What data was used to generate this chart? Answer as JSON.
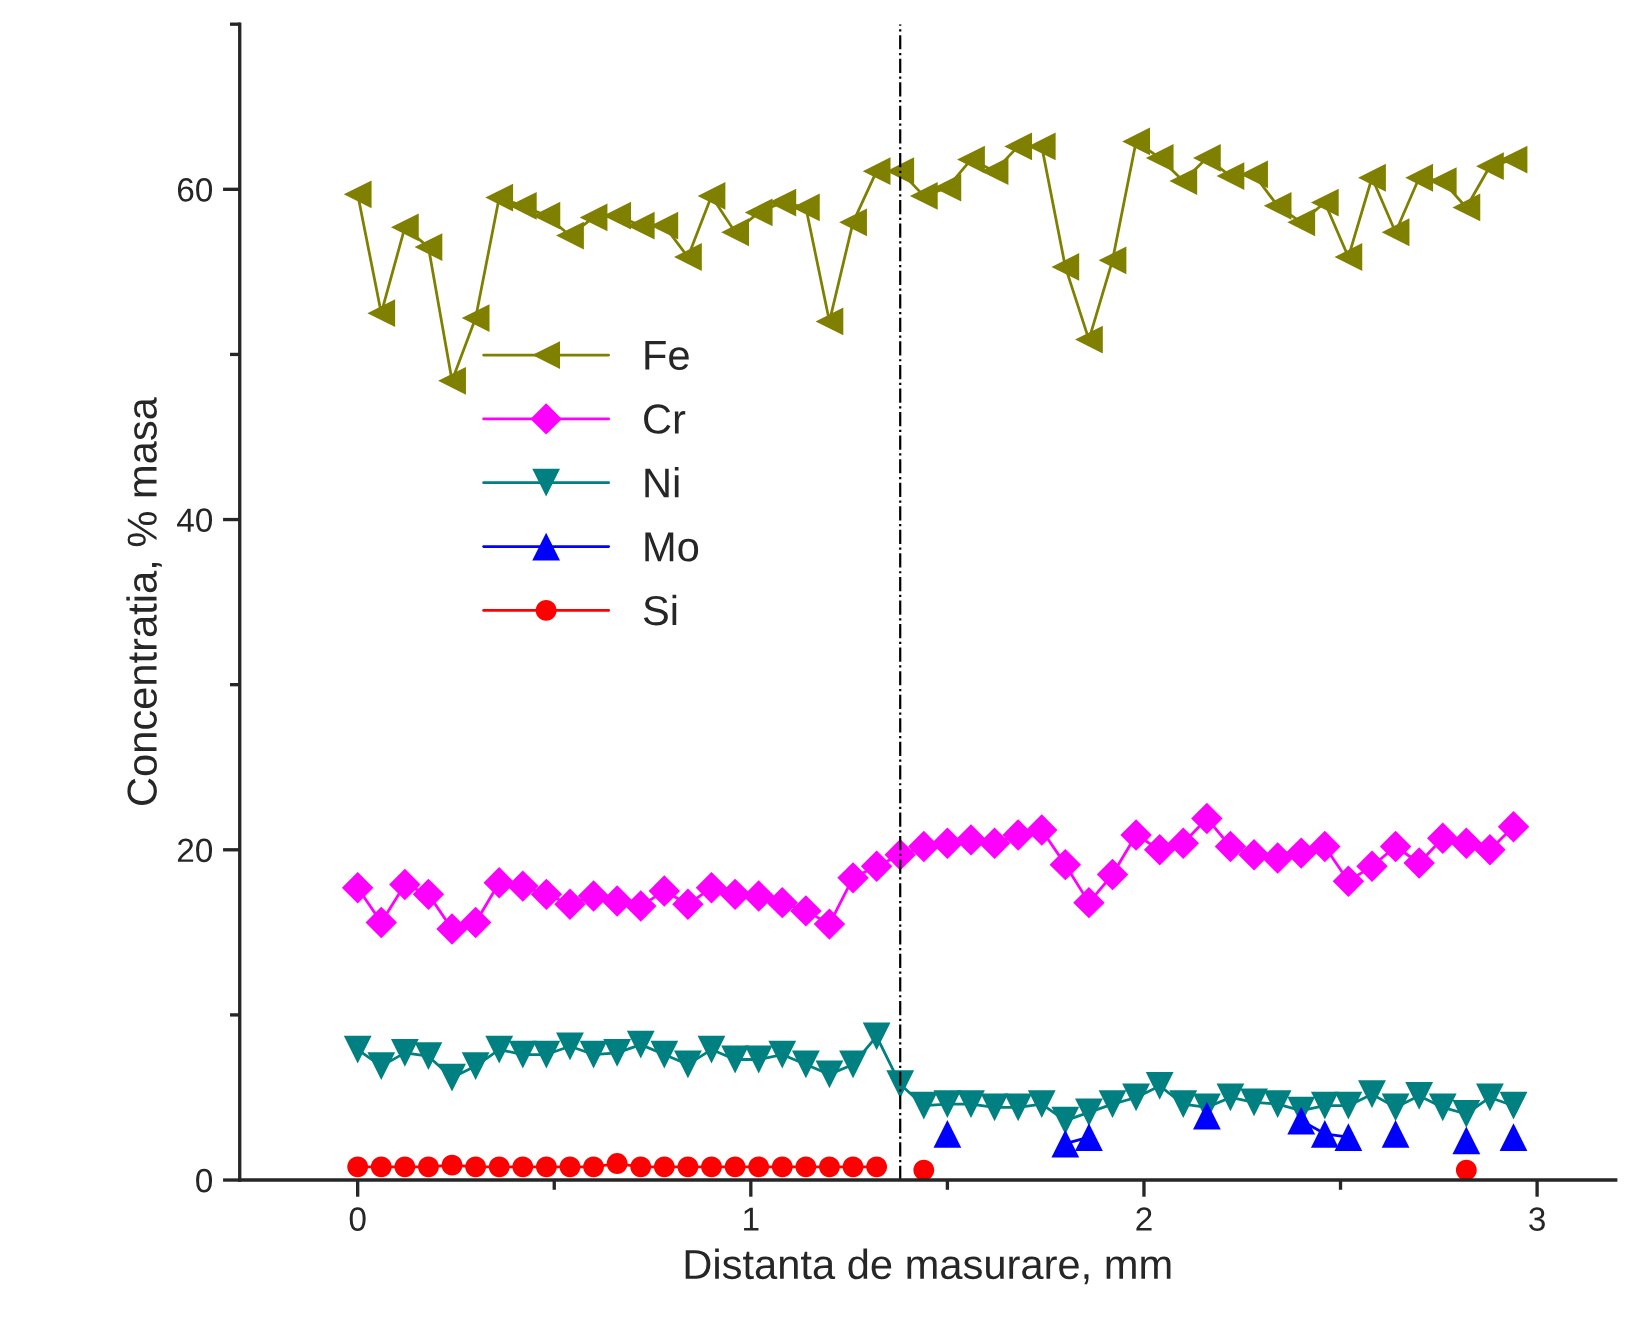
{
  "chart_data": {
    "type": "line",
    "xlabel": "Distanta de masurare, mm",
    "ylabel": "Concentratia, % masa",
    "x": [
      0,
      0.06,
      0.12,
      0.18,
      0.24,
      0.3,
      0.36,
      0.42,
      0.48,
      0.54,
      0.6,
      0.66,
      0.72,
      0.78,
      0.84,
      0.9,
      0.96,
      1.02,
      1.08,
      1.14,
      1.2,
      1.26,
      1.32,
      1.38,
      1.44,
      1.5,
      1.56,
      1.62,
      1.68,
      1.74,
      1.8,
      1.86,
      1.92,
      1.98,
      2.04,
      2.1,
      2.16,
      2.22,
      2.28,
      2.34,
      2.4,
      2.46,
      2.52,
      2.58,
      2.64,
      2.7,
      2.76,
      2.82,
      2.88,
      2.94
    ],
    "series": [
      {
        "name": "Fe",
        "color": "#808000",
        "marker": "triangle-left",
        "values": [
          59.7,
          52.5,
          57.7,
          56.5,
          48.4,
          52.2,
          59.5,
          59.0,
          58.4,
          57.2,
          58.3,
          58.4,
          57.8,
          57.8,
          55.9,
          59.6,
          57.4,
          58.6,
          59.2,
          58.9,
          52.0,
          58.0,
          61.1,
          61.1,
          59.6,
          60.1,
          61.8,
          61.1,
          62.6,
          62.6,
          55.3,
          50.9,
          55.7,
          62.9,
          61.9,
          60.5,
          61.9,
          60.8,
          60.9,
          59.0,
          58.0,
          59.2,
          55.9,
          60.7,
          57.4,
          60.7,
          60.5,
          58.9,
          61.4,
          61.8
        ]
      },
      {
        "name": "Cr",
        "color": "#ff00ff",
        "marker": "diamond",
        "values": [
          17.7,
          15.6,
          17.9,
          17.3,
          15.2,
          15.6,
          18.0,
          17.8,
          17.3,
          16.7,
          17.2,
          16.9,
          16.6,
          17.5,
          16.7,
          17.7,
          17.3,
          17.2,
          16.8,
          16.3,
          15.5,
          18.3,
          19.0,
          19.7,
          20.2,
          20.4,
          20.6,
          20.4,
          20.9,
          21.2,
          19.1,
          16.8,
          18.5,
          20.9,
          20.0,
          20.4,
          21.9,
          20.2,
          19.7,
          19.5,
          19.8,
          20.2,
          18.1,
          19.0,
          20.2,
          19.2,
          20.7,
          20.4,
          20.0,
          21.4
        ]
      },
      {
        "name": "Ni",
        "color": "#008080",
        "marker": "triangle-down",
        "values": [
          7.9,
          6.9,
          7.7,
          7.5,
          6.2,
          6.9,
          7.9,
          7.6,
          7.6,
          8.1,
          7.6,
          7.7,
          8.2,
          7.6,
          7.0,
          7.9,
          7.3,
          7.3,
          7.6,
          7.0,
          6.4,
          7.0,
          8.7,
          5.8,
          4.5,
          4.6,
          4.6,
          4.4,
          4.4,
          4.6,
          3.6,
          4.1,
          4.6,
          5.0,
          5.7,
          4.6,
          4.4,
          5.0,
          4.7,
          4.6,
          4.2,
          4.5,
          4.5,
          5.2,
          4.4,
          5.1,
          4.4,
          4.0,
          5.0,
          4.5
        ]
      },
      {
        "name": "Mo",
        "color": "#0000ff",
        "marker": "triangle-up",
        "values": [
          null,
          null,
          null,
          null,
          null,
          null,
          null,
          null,
          null,
          null,
          null,
          null,
          null,
          null,
          null,
          null,
          null,
          null,
          null,
          null,
          null,
          null,
          null,
          null,
          null,
          2.8,
          null,
          null,
          null,
          null,
          2.2,
          2.6,
          null,
          null,
          null,
          null,
          3.9,
          null,
          null,
          null,
          3.6,
          2.8,
          2.6,
          null,
          2.8,
          null,
          null,
          2.4,
          null,
          2.6
        ]
      },
      {
        "name": "Si",
        "color": "#ff0000",
        "marker": "circle",
        "values": [
          0.8,
          0.8,
          0.8,
          0.8,
          0.9,
          0.8,
          0.8,
          0.8,
          0.8,
          0.8,
          0.8,
          1.0,
          0.8,
          0.8,
          0.8,
          0.8,
          0.8,
          0.8,
          0.8,
          0.8,
          0.8,
          0.8,
          0.8,
          null,
          0.6,
          null,
          null,
          null,
          null,
          null,
          null,
          null,
          null,
          null,
          null,
          null,
          null,
          null,
          null,
          null,
          null,
          null,
          null,
          null,
          null,
          null,
          null,
          0.6,
          null,
          null
        ]
      }
    ],
    "xlim": [
      -0.3,
      3.2
    ],
    "xticks": [
      0,
      1,
      2,
      3
    ],
    "ylim": [
      0,
      70
    ],
    "yticks": [
      0,
      20,
      40,
      60
    ],
    "ref_lines": [
      {
        "axis": "x",
        "value": 1.38,
        "color": "#000000",
        "line_style": "dashdot"
      }
    ],
    "legend": "left",
    "grid": false
  }
}
